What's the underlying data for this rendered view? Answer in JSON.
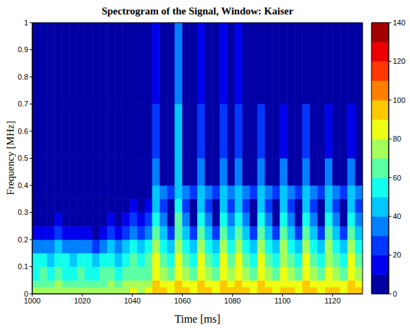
{
  "chart_data": {
    "type": "heatmap",
    "title": "Spectrogram of the Signal, Window: Kaiser",
    "x_label": "Time [ms]",
    "y_label": "Frequency [MHz]",
    "xlim": [
      1000,
      1132
    ],
    "xticks": [
      1000,
      1020,
      1040,
      1060,
      1080,
      1100,
      1120
    ],
    "ylim": [
      0,
      1
    ],
    "yticks": [
      0,
      0.1,
      0.2,
      0.3,
      0.4,
      0.5,
      0.6,
      0.7,
      0.8,
      0.9,
      1
    ],
    "cells": {
      "x_edges": [
        1000,
        1003,
        1006,
        1009,
        1012,
        1015,
        1018,
        1021,
        1024,
        1027,
        1030,
        1033,
        1036,
        1039,
        1042,
        1045,
        1048,
        1051,
        1054,
        1057,
        1060,
        1063,
        1066,
        1069,
        1072,
        1075,
        1078,
        1081,
        1084,
        1087,
        1090,
        1093,
        1096,
        1099,
        1102,
        1105,
        1108,
        1111,
        1114,
        1117,
        1120,
        1123,
        1126,
        1129,
        1132
      ],
      "y_edges": [
        0,
        0.025,
        0.05,
        0.1,
        0.15,
        0.2,
        0.25,
        0.3,
        0.35,
        0.4,
        0.5,
        0.7,
        1
      ],
      "values": [
        [
          74,
          76,
          73,
          77,
          75,
          74,
          76,
          75,
          73,
          76,
          77,
          74,
          78,
          80,
          79,
          82,
          95,
          90,
          86,
          96,
          90,
          86,
          95,
          90,
          86,
          95,
          90,
          95,
          90,
          86,
          95,
          90,
          86,
          94,
          90,
          86,
          95,
          90,
          86,
          94,
          90,
          86,
          95,
          90
        ],
        [
          66,
          68,
          65,
          70,
          67,
          66,
          68,
          67,
          65,
          68,
          70,
          66,
          71,
          73,
          72,
          75,
          90,
          84,
          80,
          91,
          84,
          80,
          90,
          84,
          80,
          90,
          84,
          90,
          84,
          80,
          90,
          84,
          80,
          89,
          84,
          80,
          90,
          84,
          80,
          89,
          84,
          80,
          90,
          84
        ],
        [
          58,
          60,
          57,
          63,
          59,
          58,
          60,
          59,
          57,
          60,
          63,
          58,
          64,
          66,
          64,
          68,
          85,
          76,
          68,
          86,
          76,
          68,
          85,
          76,
          68,
          85,
          76,
          85,
          76,
          68,
          85,
          76,
          68,
          84,
          76,
          68,
          85,
          76,
          68,
          84,
          76,
          68,
          85,
          76
        ],
        [
          50,
          52,
          48,
          56,
          51,
          49,
          52,
          50,
          47,
          52,
          55,
          49,
          57,
          60,
          56,
          62,
          80,
          68,
          55,
          81,
          68,
          55,
          80,
          68,
          55,
          80,
          68,
          80,
          68,
          55,
          80,
          68,
          55,
          79,
          68,
          55,
          80,
          68,
          55,
          79,
          68,
          55,
          80,
          68
        ],
        [
          32,
          35,
          30,
          42,
          34,
          31,
          35,
          32,
          29,
          35,
          40,
          31,
          44,
          50,
          44,
          52,
          74,
          58,
          40,
          76,
          58,
          40,
          74,
          58,
          40,
          74,
          58,
          74,
          58,
          40,
          74,
          58,
          40,
          73,
          58,
          40,
          74,
          58,
          40,
          73,
          58,
          40,
          74,
          58
        ],
        [
          12,
          15,
          10,
          25,
          14,
          11,
          15,
          12,
          9,
          15,
          22,
          11,
          28,
          36,
          26,
          38,
          66,
          45,
          22,
          68,
          45,
          22,
          66,
          45,
          22,
          66,
          45,
          66,
          45,
          22,
          66,
          45,
          22,
          65,
          45,
          22,
          66,
          45,
          22,
          65,
          45,
          22,
          66,
          45
        ],
        [
          0,
          4,
          0,
          14,
          3,
          0,
          4,
          0,
          0,
          5,
          12,
          0,
          16,
          24,
          12,
          25,
          57,
          32,
          8,
          60,
          32,
          8,
          57,
          32,
          8,
          57,
          32,
          57,
          32,
          8,
          57,
          32,
          8,
          56,
          32,
          8,
          57,
          32,
          8,
          56,
          32,
          8,
          57,
          32
        ],
        [
          0,
          0,
          0,
          6,
          0,
          0,
          0,
          0,
          0,
          0,
          4,
          0,
          8,
          14,
          4,
          12,
          47,
          20,
          0,
          52,
          20,
          0,
          47,
          20,
          0,
          48,
          20,
          47,
          20,
          0,
          47,
          20,
          0,
          46,
          20,
          0,
          47,
          20,
          0,
          46,
          20,
          0,
          47,
          20
        ],
        [
          0,
          0,
          0,
          0,
          0,
          0,
          0,
          0,
          0,
          0,
          0,
          0,
          0,
          6,
          0,
          0,
          42,
          30,
          26,
          46,
          30,
          26,
          42,
          30,
          26,
          43,
          30,
          42,
          30,
          26,
          42,
          30,
          26,
          41,
          30,
          26,
          42,
          30,
          26,
          41,
          30,
          26,
          42,
          30
        ],
        [
          0,
          0,
          0,
          0,
          0,
          0,
          0,
          0,
          0,
          0,
          0,
          0,
          0,
          0,
          0,
          0,
          32,
          8,
          0,
          40,
          8,
          0,
          32,
          8,
          0,
          34,
          8,
          32,
          8,
          0,
          32,
          8,
          0,
          30,
          8,
          0,
          32,
          8,
          0,
          30,
          8,
          0,
          32,
          8
        ],
        [
          0,
          0,
          0,
          0,
          0,
          0,
          0,
          0,
          0,
          0,
          0,
          0,
          0,
          0,
          0,
          0,
          22,
          0,
          0,
          40,
          0,
          0,
          22,
          0,
          0,
          26,
          0,
          22,
          0,
          0,
          20,
          0,
          0,
          18,
          0,
          0,
          20,
          0,
          0,
          16,
          0,
          0,
          18,
          0
        ],
        [
          0,
          0,
          0,
          0,
          0,
          0,
          0,
          0,
          0,
          0,
          0,
          0,
          0,
          0,
          0,
          0,
          12,
          0,
          0,
          36,
          0,
          0,
          10,
          0,
          0,
          18,
          0,
          10,
          0,
          0,
          8,
          0,
          0,
          0,
          0,
          0,
          6,
          0,
          0,
          0,
          0,
          0,
          4,
          0
        ]
      ]
    },
    "colorbar": {
      "range": [
        0,
        140
      ],
      "ticks": [
        0,
        20,
        40,
        60,
        80,
        100,
        120,
        140
      ]
    }
  }
}
